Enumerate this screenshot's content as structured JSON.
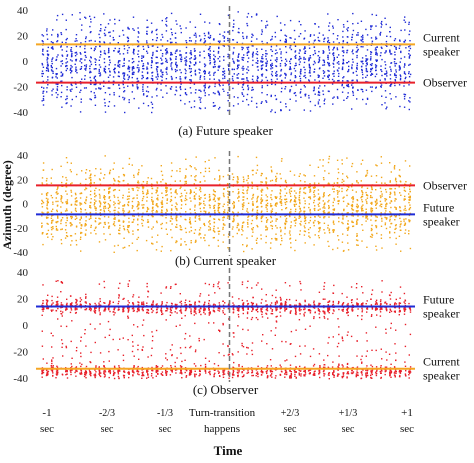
{
  "chart_data": [
    {
      "type": "scatter",
      "caption": "(a) Future speaker",
      "point_color": "#1f2bd6",
      "ylim": [
        -40,
        40
      ],
      "yticks": [
        40,
        20,
        0,
        -20,
        -40
      ],
      "lines": [
        {
          "name": "Current speaker",
          "y": 13,
          "color": "#f5a623",
          "label_lines": [
            "Current",
            "speaker"
          ]
        },
        {
          "name": "Observer",
          "y": -17,
          "color": "#e8202a",
          "label_lines": [
            "Observer"
          ]
        }
      ],
      "distribution": {
        "center": -2,
        "spread": 18,
        "min": -40,
        "max": 40
      }
    },
    {
      "type": "scatter",
      "caption": "(b) Current speaker",
      "point_color": "#f2a71b",
      "ylim": [
        -40,
        40
      ],
      "yticks": [
        40,
        20,
        0,
        -20,
        -40
      ],
      "lines": [
        {
          "name": "Observer",
          "y": 15,
          "color": "#e8202a",
          "label_lines": [
            "Observer"
          ]
        },
        {
          "name": "Future speaker",
          "y": -9,
          "color": "#1f2bd6",
          "label_lines": [
            "Future",
            "speaker"
          ]
        }
      ],
      "distribution": {
        "center": -2,
        "spread": 17,
        "min": -40,
        "max": 40
      }
    },
    {
      "type": "scatter",
      "caption": "(c) Observer",
      "point_color": "#e8202a",
      "ylim": [
        -40,
        40
      ],
      "yticks": [
        40,
        20,
        0,
        -20,
        -40
      ],
      "lines": [
        {
          "name": "Future speaker",
          "y": 14,
          "color": "#1f2bd6",
          "label_lines": [
            "Future",
            "speaker"
          ]
        },
        {
          "name": "Current speaker",
          "y": -33,
          "color": "#f5a623",
          "label_lines": [
            "Current",
            "speaker"
          ]
        }
      ],
      "distribution": {
        "bands": [
          14,
          -35
        ],
        "min": -40,
        "max": 40
      }
    }
  ],
  "ylabel": "Azimuth (degree)",
  "xlabel": "Time",
  "xticks": [
    {
      "top": "-1",
      "bottom": "sec"
    },
    {
      "top": "-2/3",
      "bottom": "sec"
    },
    {
      "top": "-1/3",
      "bottom": "sec"
    },
    {
      "top": "Turn-transition",
      "bottom": "happens"
    },
    {
      "top": "+2/3",
      "bottom": "sec"
    },
    {
      "top": "+1/3",
      "bottom": "sec"
    },
    {
      "top": "+1",
      "bottom": "sec"
    }
  ],
  "transition_line_color": "#777777"
}
